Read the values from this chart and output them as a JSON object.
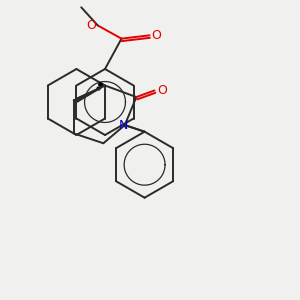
{
  "bg_color": "#f0f0ef",
  "bond_color": "#2a2a2a",
  "atom_colors": {
    "O": "#e00000",
    "N": "#0000cc"
  },
  "font_size_atom": 9,
  "font_size_small": 7
}
